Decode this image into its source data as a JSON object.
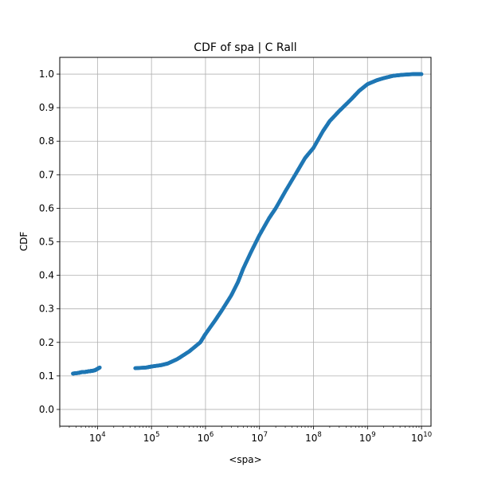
{
  "chart_data": {
    "type": "scatter",
    "title": "CDF of spa | C Rall",
    "xlabel": "<spa>",
    "ylabel": "CDF",
    "xscale": "log",
    "xlim": [
      2000,
      15000000000
    ],
    "ylim": [
      -0.05,
      1.05
    ],
    "grid": true,
    "marker_color": "#1f77b4",
    "x_ticks": [
      {
        "value": 10000,
        "base": "10",
        "exp": "4"
      },
      {
        "value": 100000,
        "base": "10",
        "exp": "5"
      },
      {
        "value": 1000000,
        "base": "10",
        "exp": "6"
      },
      {
        "value": 10000000,
        "base": "10",
        "exp": "7"
      },
      {
        "value": 100000000,
        "base": "10",
        "exp": "8"
      },
      {
        "value": 1000000000,
        "base": "10",
        "exp": "9"
      },
      {
        "value": 10000000000,
        "base": "10",
        "exp": "10"
      }
    ],
    "y_ticks": [
      "0.0",
      "0.1",
      "0.2",
      "0.3",
      "0.4",
      "0.5",
      "0.6",
      "0.7",
      "0.8",
      "0.9",
      "1.0"
    ],
    "curve": [
      [
        3500,
        0.107
      ],
      [
        4500,
        0.109
      ],
      [
        5000,
        0.111
      ],
      [
        6000,
        0.112
      ],
      [
        7000,
        0.114
      ],
      [
        8000,
        0.115
      ],
      [
        9000,
        0.117
      ],
      [
        10000,
        0.121
      ],
      [
        11000,
        0.125
      ],
      [
        50000,
        0.123
      ],
      [
        80000,
        0.125
      ],
      [
        100000,
        0.128
      ],
      [
        150000,
        0.132
      ],
      [
        200000,
        0.137
      ],
      [
        300000,
        0.15
      ],
      [
        500000,
        0.173
      ],
      [
        800000,
        0.2
      ],
      [
        1000000,
        0.225
      ],
      [
        1500000,
        0.265
      ],
      [
        2000000,
        0.295
      ],
      [
        3000000,
        0.34
      ],
      [
        4000000,
        0.38
      ],
      [
        5000000,
        0.42
      ],
      [
        7000000,
        0.47
      ],
      [
        10000000,
        0.52
      ],
      [
        15000000,
        0.57
      ],
      [
        20000000,
        0.6
      ],
      [
        30000000,
        0.65
      ],
      [
        50000000,
        0.71
      ],
      [
        70000000,
        0.75
      ],
      [
        100000000,
        0.78
      ],
      [
        150000000,
        0.83
      ],
      [
        200000000,
        0.86
      ],
      [
        300000000,
        0.89
      ],
      [
        500000000,
        0.925
      ],
      [
        700000000,
        0.95
      ],
      [
        1000000000,
        0.97
      ],
      [
        1500000000,
        0.982
      ],
      [
        2000000000,
        0.988
      ],
      [
        3000000000,
        0.995
      ],
      [
        4500000000,
        0.998
      ],
      [
        7000000000,
        1.0
      ],
      [
        10000000000,
        1.0
      ]
    ]
  }
}
